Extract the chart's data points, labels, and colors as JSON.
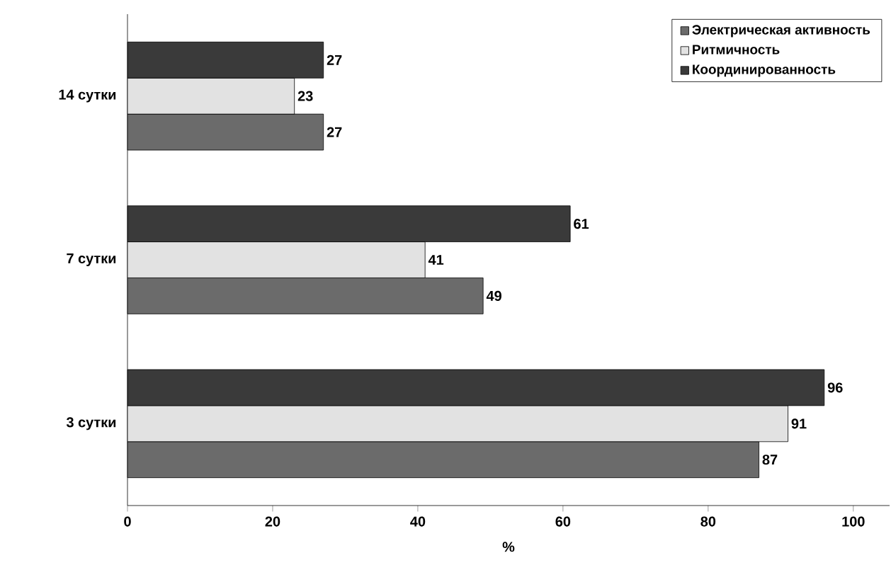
{
  "chart_data": {
    "type": "bar",
    "orientation": "horizontal",
    "xlabel": "%",
    "categories": [
      "14 сутки",
      "7 сутки",
      "3 сутки"
    ],
    "series": [
      {
        "name": "Электрическая активность",
        "color": "#6b6b6b",
        "values": [
          27,
          49,
          87
        ]
      },
      {
        "name": "Ритмичность",
        "color": "#e2e2e2",
        "values": [
          23,
          41,
          91
        ]
      },
      {
        "name": "Координированность",
        "color": "#3a3a3a",
        "values": [
          27,
          61,
          96
        ]
      }
    ],
    "xlim": [
      0,
      105
    ],
    "xticks": [
      0,
      20,
      40,
      60,
      80,
      100
    ],
    "data_labels": true,
    "legend": "top right",
    "grid": false
  }
}
